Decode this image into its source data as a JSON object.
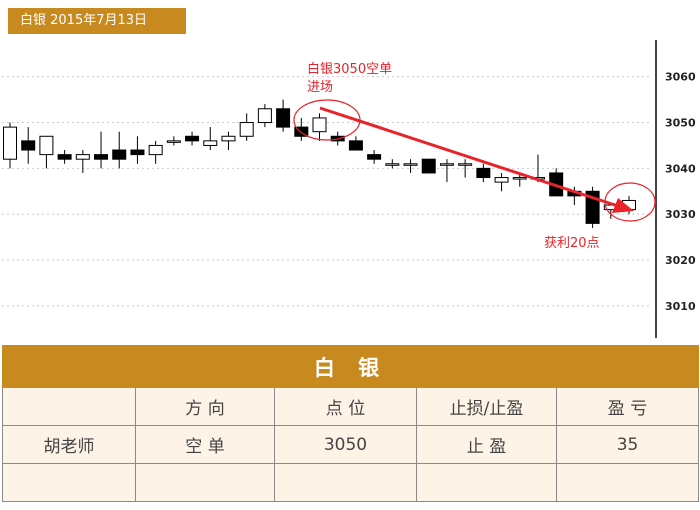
{
  "header": {
    "title": "白银 2015年7月13日"
  },
  "annotations": {
    "entry": [
      "白银3050空单",
      "进场"
    ],
    "profit": "获利20点"
  },
  "chart_data": {
    "type": "candlestick",
    "title": "白银 2015年7月13日",
    "y_ticks": [
      "3060",
      "3050",
      "3040",
      "3030",
      "3020",
      "3010"
    ],
    "ylim": [
      3003,
      3068
    ],
    "grid": true,
    "y_axis_position": "right",
    "candles": [
      {
        "o": 3042,
        "h": 3050,
        "l": 3040,
        "c": 3049
      },
      {
        "o": 3046,
        "h": 3049,
        "l": 3041,
        "c": 3044
      },
      {
        "o": 3043,
        "h": 3047,
        "l": 3040,
        "c": 3047
      },
      {
        "o": 3043,
        "h": 3044,
        "l": 3041,
        "c": 3042
      },
      {
        "o": 3042,
        "h": 3044,
        "l": 3039,
        "c": 3043
      },
      {
        "o": 3043,
        "h": 3048,
        "l": 3040,
        "c": 3042
      },
      {
        "o": 3044,
        "h": 3048,
        "l": 3040,
        "c": 3042
      },
      {
        "o": 3044,
        "h": 3047,
        "l": 3041,
        "c": 3043
      },
      {
        "o": 3043,
        "h": 3046,
        "l": 3041,
        "c": 3045
      },
      {
        "o": 3046,
        "h": 3047,
        "l": 3045,
        "c": 3046
      },
      {
        "o": 3047,
        "h": 3048,
        "l": 3045,
        "c": 3046
      },
      {
        "o": 3045,
        "h": 3049,
        "l": 3044,
        "c": 3046
      },
      {
        "o": 3046,
        "h": 3048,
        "l": 3044,
        "c": 3047
      },
      {
        "o": 3047,
        "h": 3052,
        "l": 3046,
        "c": 3050
      },
      {
        "o": 3050,
        "h": 3054,
        "l": 3049,
        "c": 3053
      },
      {
        "o": 3053,
        "h": 3055,
        "l": 3048,
        "c": 3049
      },
      {
        "o": 3049,
        "h": 3051,
        "l": 3046,
        "c": 3047
      },
      {
        "o": 3048,
        "h": 3052,
        "l": 3046,
        "c": 3051
      },
      {
        "o": 3047,
        "h": 3048,
        "l": 3045,
        "c": 3046
      },
      {
        "o": 3046,
        "h": 3047,
        "l": 3044,
        "c": 3044
      },
      {
        "o": 3043,
        "h": 3044,
        "l": 3041,
        "c": 3042
      },
      {
        "o": 3041,
        "h": 3042,
        "l": 3040,
        "c": 3041
      },
      {
        "o": 3041,
        "h": 3042,
        "l": 3039,
        "c": 3041
      },
      {
        "o": 3042,
        "h": 3042,
        "l": 3039,
        "c": 3039
      },
      {
        "o": 3041,
        "h": 3042,
        "l": 3037,
        "c": 3041
      },
      {
        "o": 3041,
        "h": 3042,
        "l": 3038,
        "c": 3041
      },
      {
        "o": 3040,
        "h": 3041,
        "l": 3037,
        "c": 3038
      },
      {
        "o": 3037,
        "h": 3039,
        "l": 3035,
        "c": 3038
      },
      {
        "o": 3038,
        "h": 3039,
        "l": 3036,
        "c": 3038
      },
      {
        "o": 3038,
        "h": 3043,
        "l": 3037,
        "c": 3038
      },
      {
        "o": 3039,
        "h": 3040,
        "l": 3034,
        "c": 3034
      },
      {
        "o": 3035,
        "h": 3036,
        "l": 3032,
        "c": 3034
      },
      {
        "o": 3035,
        "h": 3036,
        "l": 3027,
        "c": 3028
      },
      {
        "o": 3031,
        "h": 3032,
        "l": 3029,
        "c": 3032
      },
      {
        "o": 3031,
        "h": 3034,
        "l": 3030,
        "c": 3033
      }
    ]
  },
  "table": {
    "title": "白 银",
    "headers": [
      "",
      "方 向",
      "点 位",
      "止损/止盈",
      "盈 亏"
    ],
    "rows": [
      [
        "胡老师",
        "空 单",
        "3050",
        "止 盈",
        "35"
      ],
      [
        "",
        "",
        "",
        "",
        ""
      ]
    ]
  },
  "colors": {
    "accent": "#c8891e",
    "cell_bg": "#fdf3e6",
    "annotation": "#e8242a",
    "bear_candle": "#000000",
    "bull_candle": "#ffffff"
  }
}
